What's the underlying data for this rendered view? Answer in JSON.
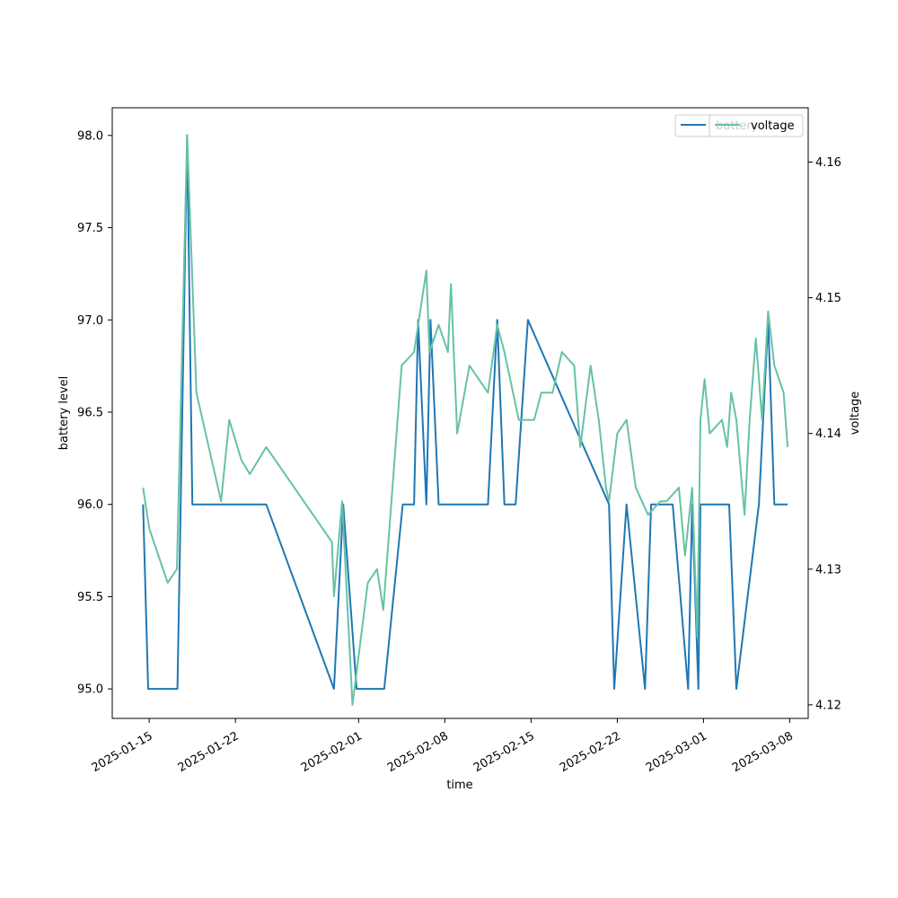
{
  "chart_data": {
    "type": "line",
    "title": "",
    "xlabel": "time",
    "ylabel": "battery level",
    "ylabel_right": "voltage",
    "xlim": [
      "2025-01-12T00:00",
      "2025-03-09T12:00"
    ],
    "ylim": [
      94.84,
      98.15
    ],
    "ylim_right": [
      4.119,
      4.164
    ],
    "grid": false,
    "legend_placement": "upper-right",
    "x_ticks": [
      "2025-01-15",
      "2025-01-22",
      "2025-02-01",
      "2025-02-08",
      "2025-02-15",
      "2025-02-22",
      "2025-03-01",
      "2025-03-08"
    ],
    "y_ticks": [
      95.0,
      95.5,
      96.0,
      96.5,
      97.0,
      97.5,
      98.0
    ],
    "y_ticks_right": [
      4.12,
      4.13,
      4.14,
      4.15,
      4.16
    ],
    "colors": {
      "battery": "#1f77b4",
      "voltage": "#66c2a5",
      "axis": "#000000"
    },
    "series": [
      {
        "name": "battery",
        "axis": "left",
        "x": [
          "2025-01-14T12:00",
          "2025-01-14T22:00",
          "2025-01-17T07:00",
          "2025-01-18T02:00",
          "2025-01-18T12:00",
          "2025-01-24T12:00",
          "2025-01-30T00:00",
          "2025-01-30T18:00",
          "2025-01-31T20:00",
          "2025-02-03T02:00",
          "2025-02-04T14:00",
          "2025-02-05T12:00",
          "2025-02-05T20:00",
          "2025-02-06T12:00",
          "2025-02-06T20:00",
          "2025-02-07T12:00",
          "2025-02-07T20:00",
          "2025-02-11T12:00",
          "2025-02-12T06:00",
          "2025-02-12T20:00",
          "2025-02-13T18:00",
          "2025-02-14T18:00",
          "2025-02-21T08:00",
          "2025-02-21T18:00",
          "2025-02-22T18:00",
          "2025-02-24T06:00",
          "2025-02-24T18:00",
          "2025-02-26T12:00",
          "2025-02-27T18:00",
          "2025-02-28T02:00",
          "2025-02-28T14:00",
          "2025-02-28T18:00",
          "2025-03-01T00:00",
          "2025-03-03T02:00",
          "2025-03-03T16:00",
          "2025-03-05T12:00",
          "2025-03-06T06:00",
          "2025-03-06T18:00",
          "2025-03-07T00:00",
          "2025-03-07T20:00"
        ],
        "values": [
          96.0,
          95.0,
          95.0,
          98.0,
          96.0,
          96.0,
          95.0,
          96.0,
          95.0,
          95.0,
          96.0,
          96.0,
          97.0,
          96.0,
          97.0,
          96.0,
          96.0,
          96.0,
          97.0,
          96.0,
          96.0,
          97.0,
          96.0,
          95.0,
          96.0,
          95.0,
          96.0,
          96.0,
          95.0,
          96.0,
          95.0,
          96.0,
          96.0,
          96.0,
          95.0,
          96.0,
          97.0,
          96.0,
          96.0,
          96.0
        ]
      },
      {
        "name": "voltage",
        "axis": "right",
        "x": [
          "2025-01-14T12:00",
          "2025-01-15T00:00",
          "2025-01-16T12:00",
          "2025-01-17T06:00",
          "2025-01-18T02:00",
          "2025-01-18T20:00",
          "2025-01-20T20:00",
          "2025-01-21T12:00",
          "2025-01-22T12:00",
          "2025-01-23T04:00",
          "2025-01-24T12:00",
          "2025-01-29T20:00",
          "2025-01-30T00:00",
          "2025-01-30T16:00",
          "2025-01-31T12:00",
          "2025-02-01T18:00",
          "2025-02-02T12:00",
          "2025-02-03T00:00",
          "2025-02-04T12:00",
          "2025-02-05T12:00",
          "2025-02-06T12:00",
          "2025-02-06T18:00",
          "2025-02-07T12:00",
          "2025-02-08T06:00",
          "2025-02-08T12:00",
          "2025-02-09T00:00",
          "2025-02-10T00:00",
          "2025-02-11T12:00",
          "2025-02-12T06:00",
          "2025-02-12T20:00",
          "2025-02-14T00:00",
          "2025-02-15T06:00",
          "2025-02-15T20:00",
          "2025-02-16T18:00",
          "2025-02-17T12:00",
          "2025-02-18T12:00",
          "2025-02-19T00:00",
          "2025-02-19T20:00",
          "2025-02-20T12:00",
          "2025-02-21T02:00",
          "2025-02-21T08:00",
          "2025-02-22T00:00",
          "2025-02-22T18:00",
          "2025-02-23T12:00",
          "2025-02-24T12:00",
          "2025-02-25T12:00",
          "2025-02-26T00:00",
          "2025-02-27T00:00",
          "2025-02-27T12:00",
          "2025-02-28T02:00",
          "2025-02-28T12:00",
          "2025-02-28T18:00",
          "2025-03-01T02:00",
          "2025-03-01T12:00",
          "2025-03-02T12:00",
          "2025-03-02T22:00",
          "2025-03-03T06:00",
          "2025-03-03T16:00",
          "2025-03-04T08:00",
          "2025-03-04T18:00",
          "2025-03-05T06:00",
          "2025-03-05T18:00",
          "2025-03-06T06:00",
          "2025-03-06T18:00",
          "2025-03-07T12:00",
          "2025-03-07T20:00"
        ],
        "values": [
          4.136,
          4.133,
          4.129,
          4.13,
          4.162,
          4.143,
          4.135,
          4.141,
          4.138,
          4.137,
          4.139,
          4.132,
          4.128,
          4.135,
          4.12,
          4.129,
          4.13,
          4.127,
          4.145,
          4.146,
          4.152,
          4.146,
          4.148,
          4.146,
          4.151,
          4.14,
          4.145,
          4.143,
          4.148,
          4.146,
          4.141,
          4.141,
          4.143,
          4.143,
          4.146,
          4.145,
          4.139,
          4.145,
          4.141,
          4.136,
          4.135,
          4.14,
          4.141,
          4.136,
          4.134,
          4.135,
          4.135,
          4.136,
          4.131,
          4.136,
          4.125,
          4.141,
          4.144,
          4.14,
          4.141,
          4.139,
          4.143,
          4.141,
          4.134,
          4.141,
          4.147,
          4.141,
          4.149,
          4.145,
          4.143,
          4.139
        ]
      }
    ]
  }
}
